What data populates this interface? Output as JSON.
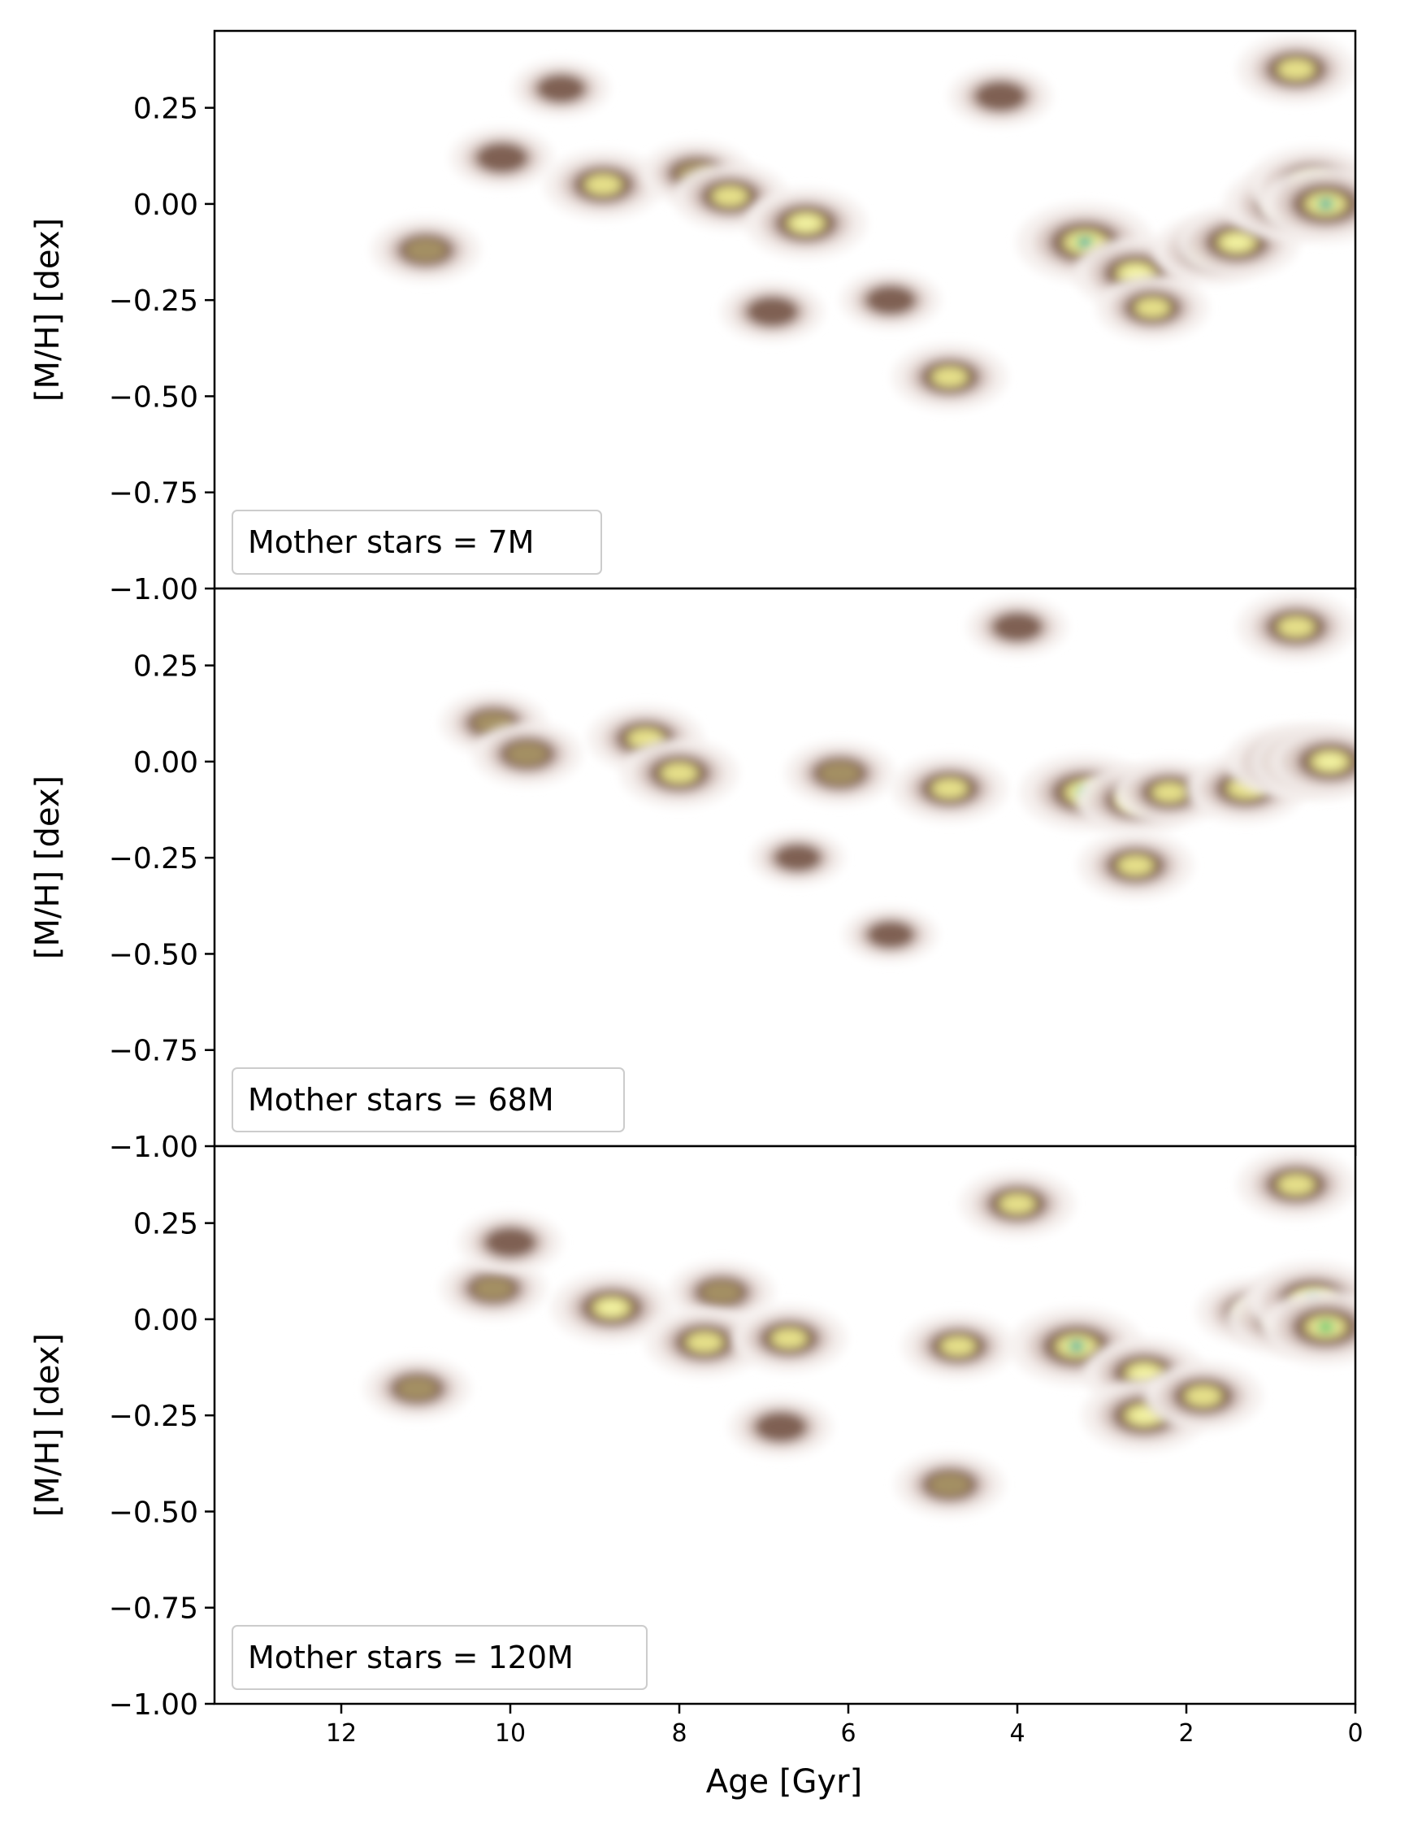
{
  "chart_data": {
    "type": "heatmap",
    "colormap": "terrain_r",
    "colors": [
      "#f4eeec",
      "#d9c8c2",
      "#9d8276",
      "#7d5e50",
      "#a49064",
      "#e6e08a",
      "#f2f2a2",
      "#3fc46c",
      "#1f97c9"
    ],
    "xlabel": "Age [Gyr]",
    "ylabel": "[M/H] [dex]",
    "xlim": [
      13.5,
      0
    ],
    "ylim": [
      -1.0,
      0.45
    ],
    "x_ticks": [
      12,
      10,
      8,
      6,
      4,
      2,
      0
    ],
    "y_ticks": [
      0.25,
      0.0,
      -0.25,
      -0.5,
      -0.75,
      -1.0
    ],
    "y_tick_labels": [
      "0.25",
      "0.00",
      "−0.25",
      "−0.50",
      "−0.75",
      "−1.00"
    ],
    "x_tick_labels": [
      "12",
      "10",
      "8",
      "6",
      "4",
      "2",
      "0"
    ],
    "shared_x": true,
    "legend_placement": "lower-left",
    "panels": [
      {
        "label": "Mother stars = 7M",
        "blobs": [
          {
            "age": 11.0,
            "mh": -0.12,
            "level": 0.55
          },
          {
            "age": 10.1,
            "mh": 0.12,
            "level": 0.45
          },
          {
            "age": 9.4,
            "mh": 0.3,
            "level": 0.35
          },
          {
            "age": 8.9,
            "mh": 0.05,
            "level": 0.7
          },
          {
            "age": 7.8,
            "mh": 0.08,
            "level": 0.55
          },
          {
            "age": 7.4,
            "mh": 0.02,
            "level": 0.65
          },
          {
            "age": 6.5,
            "mh": -0.05,
            "level": 0.75
          },
          {
            "age": 6.9,
            "mh": -0.28,
            "level": 0.45
          },
          {
            "age": 5.5,
            "mh": -0.25,
            "level": 0.4
          },
          {
            "age": 4.8,
            "mh": -0.45,
            "level": 0.65
          },
          {
            "age": 4.2,
            "mh": 0.28,
            "level": 0.45
          },
          {
            "age": 3.2,
            "mh": -0.1,
            "level": 1.0
          },
          {
            "age": 2.6,
            "mh": -0.18,
            "level": 0.8
          },
          {
            "age": 2.4,
            "mh": -0.27,
            "level": 0.6
          },
          {
            "age": 1.7,
            "mh": -0.12,
            "level": 0.7
          },
          {
            "age": 1.4,
            "mh": -0.1,
            "level": 0.8
          },
          {
            "age": 0.8,
            "mh": 0.0,
            "level": 0.85
          },
          {
            "age": 0.5,
            "mh": 0.05,
            "level": 0.9
          },
          {
            "age": 0.35,
            "mh": 0.0,
            "level": 0.95
          },
          {
            "age": 0.7,
            "mh": 0.35,
            "level": 0.7
          }
        ]
      },
      {
        "label": "Mother stars = 68M",
        "blobs": [
          {
            "age": 10.2,
            "mh": 0.1,
            "level": 0.5
          },
          {
            "age": 9.8,
            "mh": 0.02,
            "level": 0.55
          },
          {
            "age": 8.4,
            "mh": 0.06,
            "level": 0.65
          },
          {
            "age": 8.0,
            "mh": -0.03,
            "level": 0.7
          },
          {
            "age": 6.1,
            "mh": -0.03,
            "level": 0.55
          },
          {
            "age": 4.8,
            "mh": -0.07,
            "level": 0.65
          },
          {
            "age": 4.0,
            "mh": 0.35,
            "level": 0.4
          },
          {
            "age": 3.2,
            "mh": -0.08,
            "level": 0.9
          },
          {
            "age": 2.6,
            "mh": -0.1,
            "level": 0.75
          },
          {
            "age": 2.2,
            "mh": -0.08,
            "level": 0.6
          },
          {
            "age": 2.6,
            "mh": -0.27,
            "level": 0.65
          },
          {
            "age": 1.3,
            "mh": -0.07,
            "level": 0.7
          },
          {
            "age": 0.8,
            "mh": 0.0,
            "level": 0.8
          },
          {
            "age": 0.5,
            "mh": 0.0,
            "level": 0.9
          },
          {
            "age": 0.3,
            "mh": 0.0,
            "level": 0.8
          },
          {
            "age": 5.5,
            "mh": -0.45,
            "level": 0.3
          },
          {
            "age": 6.6,
            "mh": -0.25,
            "level": 0.3
          },
          {
            "age": 0.7,
            "mh": 0.35,
            "level": 0.7
          }
        ]
      },
      {
        "label": "Mother stars = 120M",
        "blobs": [
          {
            "age": 11.1,
            "mh": -0.18,
            "level": 0.5
          },
          {
            "age": 10.2,
            "mh": 0.08,
            "level": 0.5
          },
          {
            "age": 10.0,
            "mh": 0.2,
            "level": 0.45
          },
          {
            "age": 8.8,
            "mh": 0.03,
            "level": 0.75
          },
          {
            "age": 7.5,
            "mh": 0.07,
            "level": 0.5
          },
          {
            "age": 7.7,
            "mh": -0.06,
            "level": 0.7
          },
          {
            "age": 6.7,
            "mh": -0.05,
            "level": 0.65
          },
          {
            "age": 6.8,
            "mh": -0.28,
            "level": 0.45
          },
          {
            "age": 4.7,
            "mh": -0.07,
            "level": 0.6
          },
          {
            "age": 4.8,
            "mh": -0.43,
            "level": 0.55
          },
          {
            "age": 4.0,
            "mh": 0.3,
            "level": 0.65
          },
          {
            "age": 3.3,
            "mh": -0.07,
            "level": 0.95
          },
          {
            "age": 2.5,
            "mh": -0.14,
            "level": 0.75
          },
          {
            "age": 2.5,
            "mh": -0.25,
            "level": 0.8
          },
          {
            "age": 1.8,
            "mh": -0.2,
            "level": 0.7
          },
          {
            "age": 1.2,
            "mh": 0.02,
            "level": 0.65
          },
          {
            "age": 0.8,
            "mh": 0.0,
            "level": 0.8
          },
          {
            "age": 0.5,
            "mh": 0.05,
            "level": 0.95
          },
          {
            "age": 0.35,
            "mh": -0.02,
            "level": 0.9
          },
          {
            "age": 0.7,
            "mh": 0.35,
            "level": 0.7
          }
        ]
      }
    ]
  }
}
